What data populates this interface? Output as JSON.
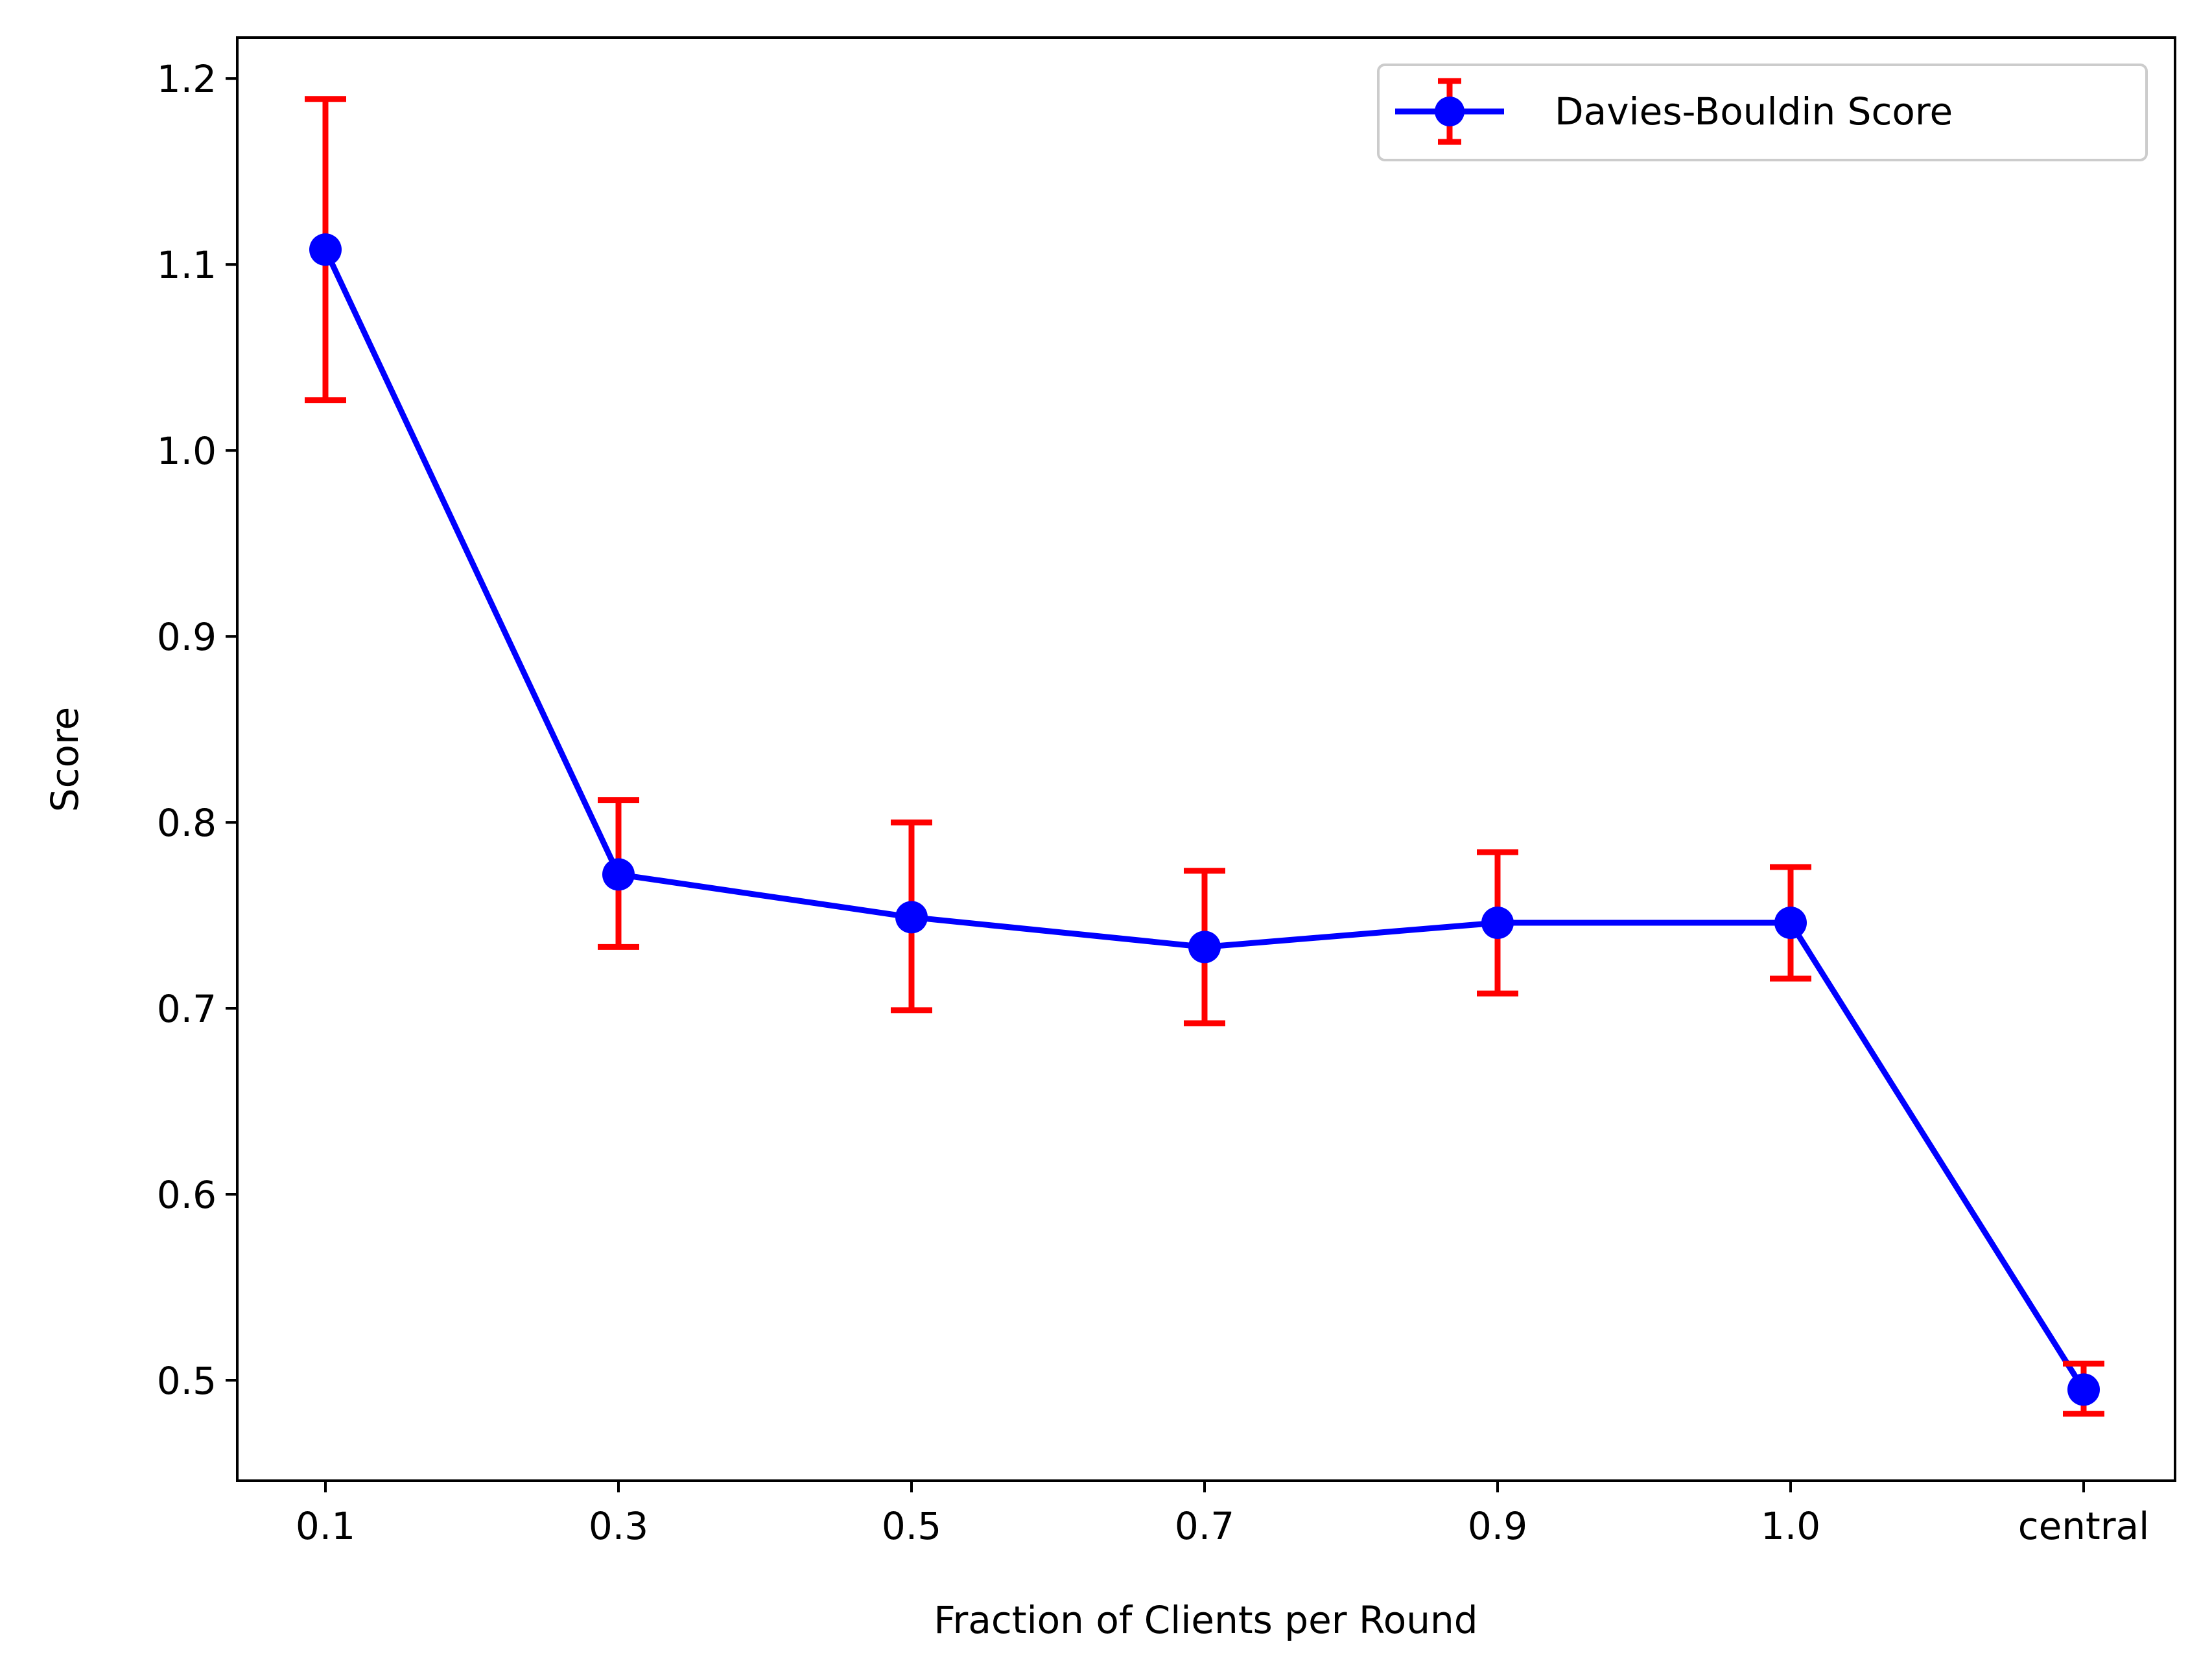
{
  "chart_data": {
    "type": "line",
    "title": "",
    "xlabel": "Fraction of Clients per Round",
    "ylabel": "Score",
    "categories": [
      "0.1",
      "0.3",
      "0.5",
      "0.7",
      "0.9",
      "1.0",
      "central"
    ],
    "series": [
      {
        "name": "Davies-Bouldin Score",
        "values": [
          1.108,
          0.772,
          0.749,
          0.733,
          0.746,
          0.746,
          0.495
        ],
        "error_low": [
          1.027,
          0.733,
          0.699,
          0.692,
          0.708,
          0.716,
          0.482
        ],
        "error_high": [
          1.189,
          0.812,
          0.8,
          0.774,
          0.784,
          0.776,
          0.509
        ],
        "line_color": "#0000ff",
        "marker_color": "#0000ff",
        "error_color": "#ff0000"
      }
    ],
    "ylim": [
      0.446,
      1.222
    ],
    "yticks": [
      "0.5",
      "0.6",
      "0.7",
      "0.8",
      "0.9",
      "1.0",
      "1.1",
      "1.2"
    ],
    "grid": false,
    "legend_position": "top-right"
  }
}
